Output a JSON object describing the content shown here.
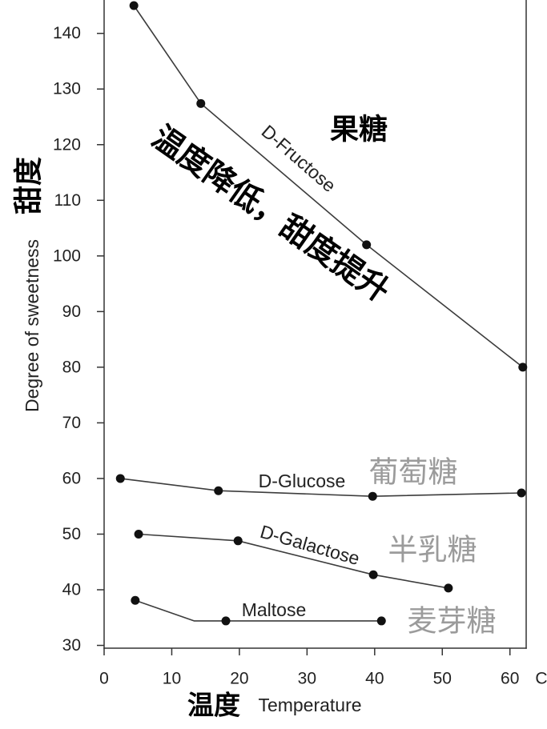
{
  "chart_data": {
    "type": "line",
    "xlabel": "Temperature",
    "ylabel": "Degree of sweetness",
    "x_unit": "C",
    "xlim": [
      0,
      62.4
    ],
    "ylim": [
      29.5,
      146
    ],
    "xticks": [
      0,
      10,
      20,
      30,
      40,
      50,
      60
    ],
    "yticks": [
      30,
      40,
      50,
      60,
      70,
      80,
      90,
      100,
      110,
      120,
      130,
      140
    ],
    "grid": false,
    "legend": "none",
    "series": [
      {
        "name": "D-Fructose",
        "x": [
          4.4,
          14.3,
          38.8,
          61.9
        ],
        "y": [
          145,
          127.4,
          102,
          80
        ]
      },
      {
        "name": "D-Glucose",
        "x": [
          2.4,
          16.9,
          39.7,
          61.7
        ],
        "y": [
          60,
          57.8,
          56.8,
          57.4
        ]
      },
      {
        "name": "D-Galactose",
        "x": [
          5.1,
          19.8,
          39.8,
          50.9
        ],
        "y": [
          50,
          48.8,
          42.7,
          40.3
        ]
      },
      {
        "name": "Maltose",
        "x": [
          4.6,
          13.3,
          18.0,
          41.0
        ],
        "y": [
          38.1,
          34.4,
          34.4,
          34.4
        ],
        "markers": [
          true,
          false,
          true,
          true
        ]
      }
    ]
  },
  "labels_cn": {
    "ylabel": "甜度",
    "xlabel": "温度",
    "fructose": "果糖",
    "glucose": "葡萄糖",
    "galactose": "半乳糖",
    "maltose": "麦芽糖",
    "annotation": "温度降低，甜度提升"
  },
  "colors": {
    "axis": "#333333",
    "line": "#3c3c3c",
    "marker": "#111111",
    "text": "#222222",
    "cn_black": "#000000",
    "cn_grey": "#9b9b9b"
  }
}
